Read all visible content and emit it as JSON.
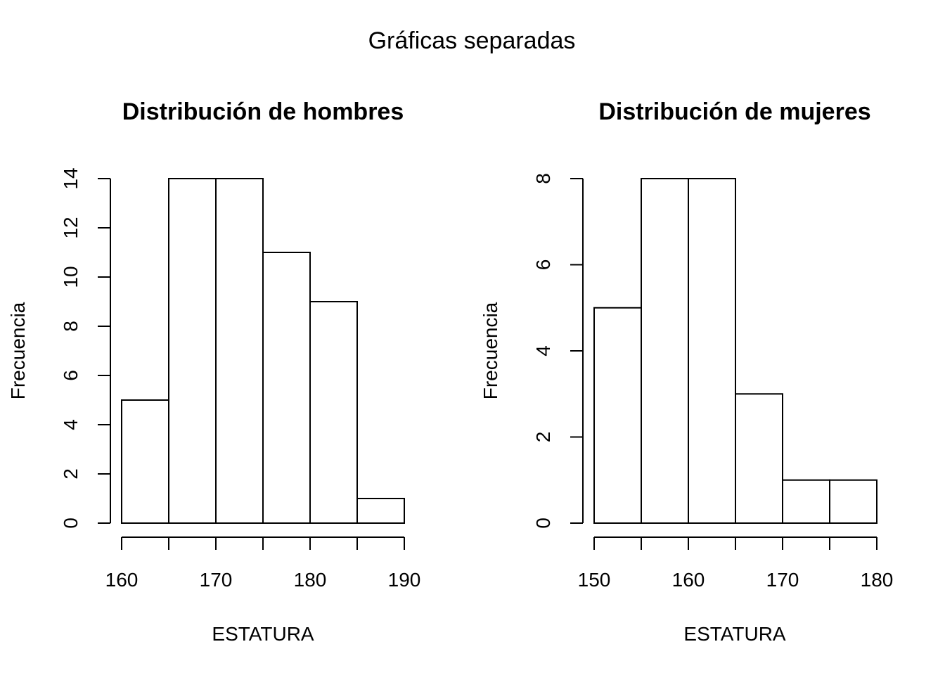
{
  "figure": {
    "title": "Gráficas separadas"
  },
  "chart_data": [
    {
      "type": "bar",
      "title": "Distribución de hombres",
      "xlabel": "ESTATURA",
      "ylabel": "Frecuencia",
      "bins": [
        [
          160,
          165
        ],
        [
          165,
          170
        ],
        [
          170,
          175
        ],
        [
          175,
          180
        ],
        [
          180,
          185
        ],
        [
          185,
          190
        ]
      ],
      "values": [
        5,
        14,
        14,
        11,
        9,
        1
      ],
      "xlim": [
        160,
        190
      ],
      "ylim": [
        0,
        14
      ],
      "xticks": [
        160,
        165,
        170,
        175,
        180,
        185,
        190
      ],
      "xtick_labels": [
        {
          "value": 160,
          "label": "160"
        },
        {
          "value": 170,
          "label": "170"
        },
        {
          "value": 180,
          "label": "180"
        },
        {
          "value": 190,
          "label": "190"
        }
      ],
      "yticks": [
        {
          "value": 0,
          "label": "0"
        },
        {
          "value": 2,
          "label": "2"
        },
        {
          "value": 4,
          "label": "4"
        },
        {
          "value": 6,
          "label": "6"
        },
        {
          "value": 8,
          "label": "8"
        },
        {
          "value": 10,
          "label": "10"
        },
        {
          "value": 12,
          "label": "12"
        },
        {
          "value": 14,
          "label": "14"
        }
      ],
      "grid": false,
      "fill_color": "#ffffff",
      "edge_color": "#000000"
    },
    {
      "type": "bar",
      "title": "Distribución de mujeres",
      "xlabel": "ESTATURA",
      "ylabel": "Frecuencia",
      "bins": [
        [
          150,
          155
        ],
        [
          155,
          160
        ],
        [
          160,
          165
        ],
        [
          165,
          170
        ],
        [
          170,
          175
        ],
        [
          175,
          180
        ]
      ],
      "values": [
        5,
        8,
        8,
        3,
        1,
        1
      ],
      "xlim": [
        150,
        180
      ],
      "ylim": [
        0,
        8
      ],
      "xticks": [
        150,
        155,
        160,
        165,
        170,
        175,
        180
      ],
      "xtick_labels": [
        {
          "value": 150,
          "label": "150"
        },
        {
          "value": 160,
          "label": "160"
        },
        {
          "value": 170,
          "label": "170"
        },
        {
          "value": 180,
          "label": "180"
        }
      ],
      "yticks": [
        {
          "value": 0,
          "label": "0"
        },
        {
          "value": 2,
          "label": "2"
        },
        {
          "value": 4,
          "label": "4"
        },
        {
          "value": 6,
          "label": "6"
        },
        {
          "value": 8,
          "label": "8"
        }
      ],
      "grid": false,
      "fill_color": "#ffffff",
      "edge_color": "#000000"
    }
  ]
}
